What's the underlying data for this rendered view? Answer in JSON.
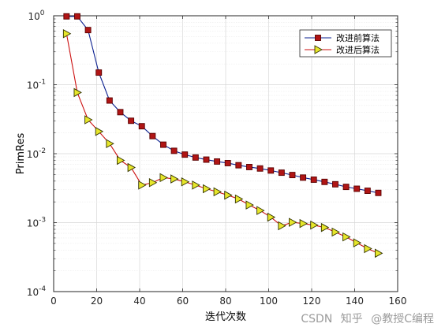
{
  "chart_data": {
    "type": "line",
    "title": "",
    "xlabel": "迭代次数",
    "ylabel": "PrimRes",
    "xlim": [
      0,
      160
    ],
    "ylim": [
      0.0001,
      1
    ],
    "yscale": "log",
    "grid": true,
    "legend_position": "top-right",
    "x_ticks": [
      0,
      20,
      40,
      60,
      80,
      100,
      120,
      140,
      160
    ],
    "x_tick_labels": [
      "0",
      "20",
      "40",
      "60",
      "80",
      "100",
      "120",
      "140",
      "160"
    ],
    "y_ticks": [
      0.0001,
      0.001,
      0.01,
      0.1,
      1
    ],
    "y_tick_labels": [
      {
        "base": "10",
        "exp": "-4"
      },
      {
        "base": "10",
        "exp": "-3"
      },
      {
        "base": "10",
        "exp": "-2"
      },
      {
        "base": "10",
        "exp": "-1"
      },
      {
        "base": "10",
        "exp": "0"
      }
    ],
    "series": [
      {
        "name": "改进前算法",
        "line_color": "#0a1f8f",
        "marker": "square",
        "marker_fill": "#b01515",
        "marker_edge": "#5a0000",
        "x": [
          6,
          11,
          16,
          21,
          26,
          31,
          36,
          41,
          46,
          51,
          56,
          61,
          66,
          71,
          76,
          81,
          86,
          91,
          96,
          101,
          106,
          111,
          116,
          121,
          126,
          131,
          136,
          141,
          146,
          151
        ],
        "y": [
          0.98,
          0.98,
          0.62,
          0.15,
          0.059,
          0.04,
          0.03,
          0.025,
          0.018,
          0.0135,
          0.011,
          0.0097,
          0.0088,
          0.0082,
          0.0077,
          0.0073,
          0.0068,
          0.0064,
          0.0061,
          0.0057,
          0.0053,
          0.0049,
          0.0045,
          0.0042,
          0.0039,
          0.0036,
          0.0033,
          0.0031,
          0.0029,
          0.0027
        ]
      },
      {
        "name": "改进后算法",
        "line_color": "#cc1111",
        "marker": "triangle-right",
        "marker_fill": "#e6e62a",
        "marker_edge": "#333300",
        "x": [
          6,
          11,
          16,
          21,
          26,
          31,
          36,
          41,
          46,
          51,
          56,
          61,
          66,
          71,
          76,
          81,
          86,
          91,
          96,
          101,
          106,
          111,
          116,
          121,
          126,
          131,
          136,
          141,
          146,
          151
        ],
        "y": [
          0.55,
          0.077,
          0.031,
          0.021,
          0.014,
          0.008,
          0.0063,
          0.0035,
          0.0038,
          0.0045,
          0.0043,
          0.0039,
          0.0035,
          0.0031,
          0.0028,
          0.0025,
          0.0022,
          0.0018,
          0.0015,
          0.0012,
          0.0009,
          0.00101,
          0.00097,
          0.00092,
          0.00085,
          0.00073,
          0.00062,
          0.00051,
          0.00042,
          0.00036
        ]
      }
    ]
  },
  "watermark": {
    "site": "CSDN",
    "zhihu": "知乎",
    "author": "@教授C编程"
  }
}
